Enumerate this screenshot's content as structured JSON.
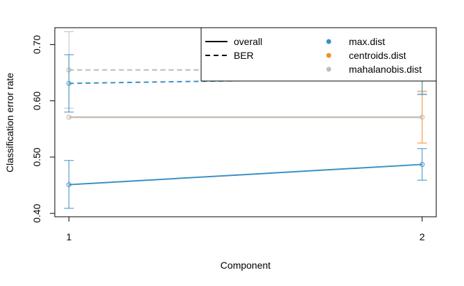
{
  "chart_data": {
    "type": "line",
    "title": "",
    "xlabel": "Component",
    "ylabel": "Classification error rate",
    "x": [
      1,
      2
    ],
    "x_tick_labels": [
      "1",
      "2"
    ],
    "y_tick_labels": [
      "0.40",
      "0.50",
      "0.60",
      "0.70"
    ],
    "y_ticks": [
      0.4,
      0.5,
      0.6,
      0.7
    ],
    "xlim": [
      0.96,
      2.04
    ],
    "ylim": [
      0.394,
      0.73
    ],
    "grid": false,
    "legend_placement": "top-right",
    "linetypes": [
      {
        "label": "overall",
        "dash": "solid"
      },
      {
        "label": "BER",
        "dash": "dashed"
      }
    ],
    "methods": [
      {
        "label": "max.dist",
        "color": "#3a8fc4"
      },
      {
        "label": "centroids.dist",
        "color": "#f28e2b"
      },
      {
        "label": "mahalanobis.dist",
        "color": "#bdbdbd"
      }
    ],
    "series": [
      {
        "method": "centroids.dist",
        "measure": "overall",
        "values": [
          0.571,
          0.571
        ],
        "err_low": [
          0.571,
          0.525
        ],
        "err_high": [
          0.571,
          0.617
        ]
      },
      {
        "method": "centroids.dist",
        "measure": "BER",
        "values": [
          0.655,
          0.655
        ],
        "err_low": [
          0.655,
          0.617
        ],
        "err_high": [
          0.655,
          0.697
        ]
      },
      {
        "method": "mahalanobis.dist",
        "measure": "overall",
        "values": [
          0.571,
          0.571
        ],
        "err_low": [
          0.571,
          0.571
        ],
        "err_high": [
          0.571,
          0.571
        ]
      },
      {
        "method": "mahalanobis.dist",
        "measure": "BER",
        "values": [
          0.655,
          0.655
        ],
        "err_low": [
          0.587,
          0.613
        ],
        "err_high": [
          0.723,
          0.707
        ]
      },
      {
        "method": "max.dist",
        "measure": "overall",
        "values": [
          0.451,
          0.487
        ],
        "err_low": [
          0.409,
          0.459
        ],
        "err_high": [
          0.494,
          0.515
        ]
      },
      {
        "method": "max.dist",
        "measure": "BER",
        "values": [
          0.631,
          0.641
        ],
        "err_low": [
          0.58,
          0.611
        ],
        "err_high": [
          0.682,
          0.671
        ]
      }
    ]
  }
}
